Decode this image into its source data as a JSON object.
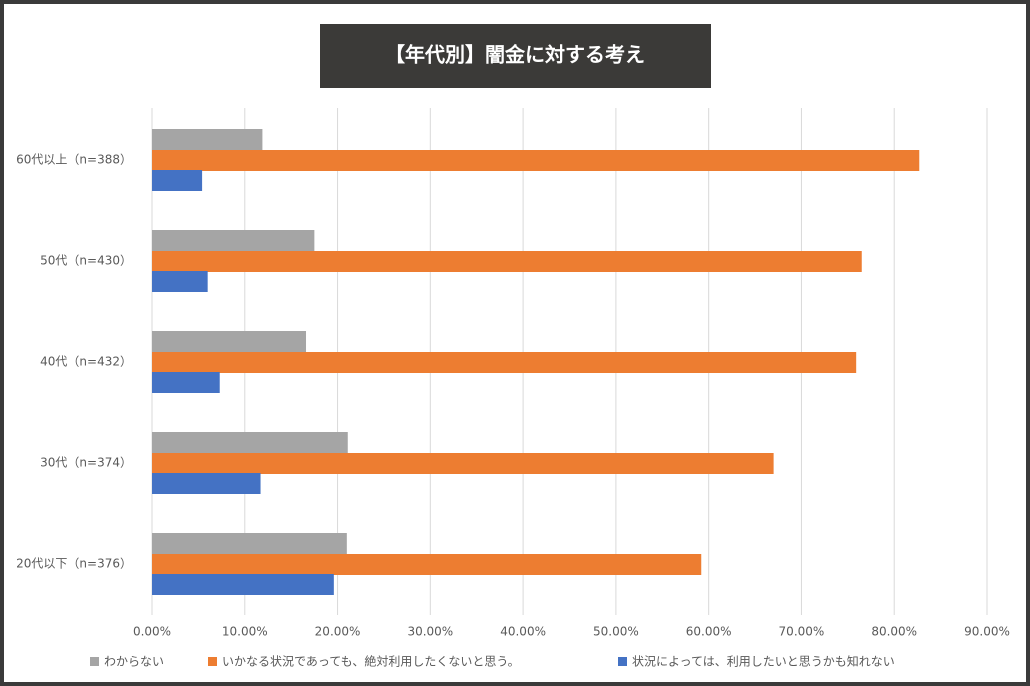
{
  "chart_data": {
    "type": "bar",
    "orientation": "horizontal",
    "title": "【年代別】闇金に対する考え",
    "categories": [
      "60代以上（n=388）",
      "50代（n=430）",
      "40代（n=432）",
      "30代（n=374）",
      "20代以下（n=376）"
    ],
    "series": [
      {
        "name": "わからない",
        "color": "#a5a5a5",
        "values": [
          11.9,
          17.5,
          16.6,
          21.1,
          21.0
        ]
      },
      {
        "name": "いかなる状況であっても、絶対利用したくないと思う。",
        "color": "#ed7d31",
        "values": [
          82.7,
          76.5,
          75.9,
          67.0,
          59.2
        ]
      },
      {
        "name": "状況によっては、利用したいと思うかも知れない",
        "color": "#4472c4",
        "values": [
          5.4,
          6.0,
          7.3,
          11.7,
          19.6
        ]
      }
    ],
    "xlim": [
      0,
      90
    ],
    "xticks": [
      {
        "value": 0,
        "label": "0.00%"
      },
      {
        "value": 10,
        "label": "10.00%"
      },
      {
        "value": 20,
        "label": "20.00%"
      },
      {
        "value": 30,
        "label": "30.00%"
      },
      {
        "value": 40,
        "label": "40.00%"
      },
      {
        "value": 50,
        "label": "50.00%"
      },
      {
        "value": 60,
        "label": "60.00%"
      },
      {
        "value": 70,
        "label": "70.00%"
      },
      {
        "value": 80,
        "label": "80.00%"
      },
      {
        "value": 90,
        "label": "90.00%"
      }
    ],
    "grid": true
  }
}
